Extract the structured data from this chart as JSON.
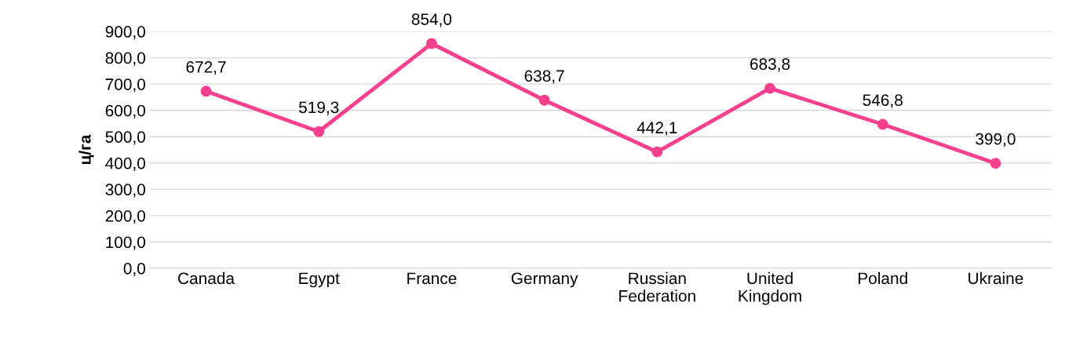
{
  "chart_data": {
    "type": "line",
    "ylabel": "ц/га",
    "categories": [
      "Canada",
      "Egypt",
      "France",
      "Germany",
      "Russian\nFederation",
      "United\nKingdom",
      "Poland",
      "Ukraine"
    ],
    "series": [
      {
        "color": "#f7418f",
        "values": [
          672.7,
          519.3,
          854.0,
          638.7,
          442.1,
          683.8,
          546.8,
          399.0
        ],
        "value_labels": [
          "672,7",
          "519,3",
          "854,0",
          "638,7",
          "442,1",
          "683,8",
          "546,8",
          "399,0"
        ]
      }
    ],
    "ylim": [
      0,
      900
    ],
    "yticks": [
      {
        "value": 0,
        "label": "0,0"
      },
      {
        "value": 100,
        "label": "100,0"
      },
      {
        "value": 200,
        "label": "200,0"
      },
      {
        "value": 300,
        "label": "300,0"
      },
      {
        "value": 400,
        "label": "400,0"
      },
      {
        "value": 500,
        "label": "500,0"
      },
      {
        "value": 600,
        "label": "600,0"
      },
      {
        "value": 700,
        "label": "700,0"
      },
      {
        "value": 800,
        "label": "800,0"
      },
      {
        "value": 900,
        "label": "900,0"
      }
    ],
    "grid": "y",
    "marker": "circle",
    "line_style": "solid",
    "legend": false
  }
}
